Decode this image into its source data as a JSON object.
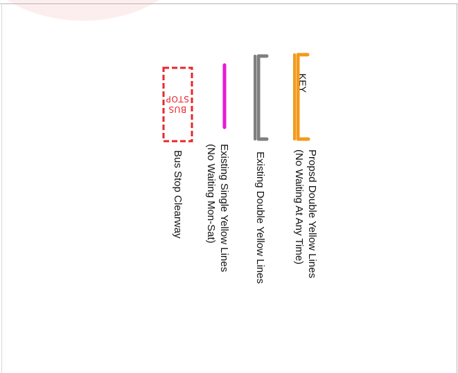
{
  "key_title": "KEY",
  "legend": [
    {
      "id": "proposed-double-yellow",
      "lines": [
        "Propsd Double Yellow  Lines",
        "(No Waiting At Any Time)"
      ],
      "color": "#f39a1c"
    },
    {
      "id": "existing-double-yellow",
      "lines": [
        "Existing Double Yellow Lines"
      ],
      "color": "#7f7f7f"
    },
    {
      "id": "existing-single-yellow",
      "lines": [
        "Existing Single Yellow Lines",
        "(No Waiting Mon-Sat)"
      ],
      "color": "#e81ad6"
    },
    {
      "id": "bus-stop-clearway",
      "lines": [
        "Bus Stop Clearway"
      ],
      "color": "#e8262b"
    }
  ],
  "bus_stop_marking": {
    "lines": [
      "BUS",
      "STOP"
    ]
  }
}
